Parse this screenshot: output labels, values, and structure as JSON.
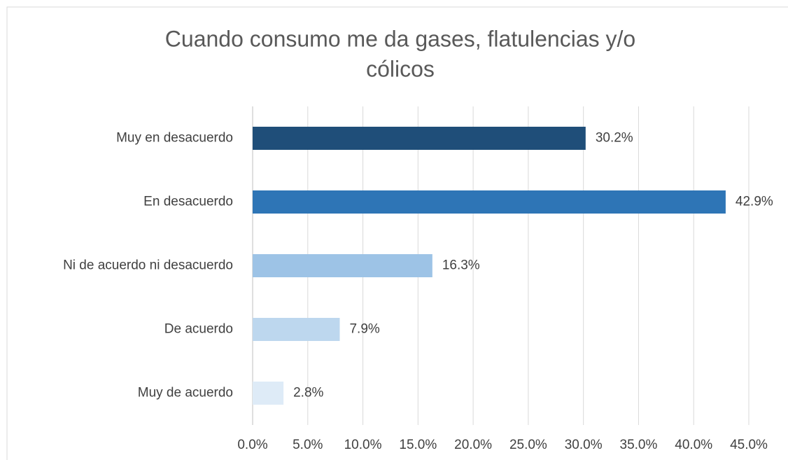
{
  "chart_data": {
    "type": "bar",
    "orientation": "horizontal",
    "title": [
      "Cuando consumo me da gases, flatulencias y/o",
      "cólicos"
    ],
    "categories": [
      "Muy en desacuerdo",
      "En desacuerdo",
      "Ni de acuerdo ni desacuerdo",
      "De acuerdo",
      "Muy de acuerdo"
    ],
    "values": [
      30.2,
      42.9,
      16.3,
      7.9,
      2.8
    ],
    "value_labels": [
      "30.2%",
      "42.9%",
      "16.3%",
      "7.9%",
      "2.8%"
    ],
    "colors": [
      "#1f4e79",
      "#2e75b6",
      "#9dc3e6",
      "#bdd7ee",
      "#deebf7"
    ],
    "xlim": [
      0,
      45
    ],
    "xticks": [
      {
        "value": 0,
        "label": "0.0%"
      },
      {
        "value": 5,
        "label": "5.0%"
      },
      {
        "value": 10,
        "label": "10.0%"
      },
      {
        "value": 15,
        "label": "15.0%"
      },
      {
        "value": 20,
        "label": "20.0%"
      },
      {
        "value": 25,
        "label": "25.0%"
      },
      {
        "value": 30,
        "label": "30.0%"
      },
      {
        "value": 35,
        "label": "35.0%"
      },
      {
        "value": 40,
        "label": "40.0%"
      },
      {
        "value": 45,
        "label": "45.0%"
      }
    ],
    "grid": true
  }
}
